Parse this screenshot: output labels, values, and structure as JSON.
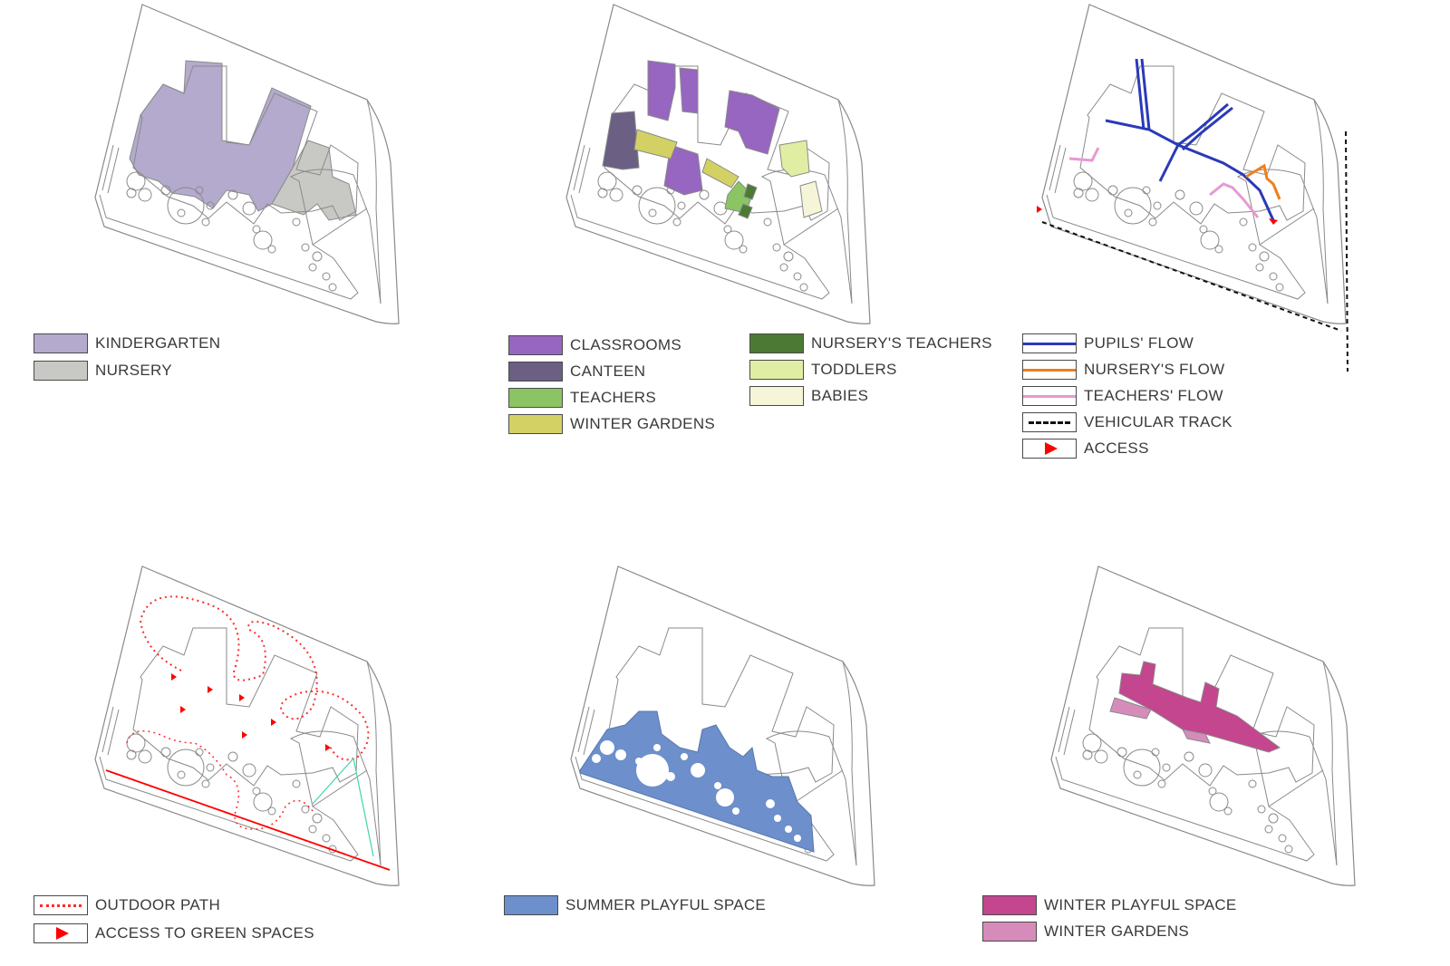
{
  "colors": {
    "kindergarten": "#b4aacd",
    "nursery": "#c8c9c4",
    "classrooms": "#9766c0",
    "canteen": "#6b5f83",
    "teachers": "#8bc462",
    "winter_gardens_yellow": "#d3d163",
    "nursery_teachers": "#4c7a34",
    "toddlers": "#e0eea4",
    "babies": "#f6f5d8",
    "pupils_flow": "#2a3ab8",
    "nursery_flow": "#f07f1a",
    "teachers_flow": "#e799d3",
    "vehicular_track": "#111111",
    "access": "#ff0000",
    "outdoor_path": "#ff2a2a",
    "summer_playful": "#6d8fcb",
    "winter_playful": "#c3468e",
    "winter_gardens_pink": "#d68cba",
    "outline": "#8a8a8a"
  },
  "legends": {
    "program": [
      {
        "label": "KINDERGARTEN",
        "swatch": "fill",
        "color": "#b4aacd"
      },
      {
        "label": "NURSERY",
        "swatch": "fill",
        "color": "#c8c9c4"
      }
    ],
    "functions_left": [
      {
        "label": "CLASSROOMS",
        "swatch": "fill",
        "color": "#9766c0"
      },
      {
        "label": "CANTEEN",
        "swatch": "fill",
        "color": "#6b5f83"
      },
      {
        "label": "TEACHERS",
        "swatch": "fill",
        "color": "#8bc462"
      },
      {
        "label": "WINTER GARDENS",
        "swatch": "fill",
        "color": "#d3d163"
      }
    ],
    "functions_right": [
      {
        "label": "NURSERY'S TEACHERS",
        "swatch": "fill",
        "color": "#4c7a34"
      },
      {
        "label": "TODDLERS",
        "swatch": "fill",
        "color": "#e0eea4"
      },
      {
        "label": "BABIES",
        "swatch": "fill",
        "color": "#f6f5d8"
      }
    ],
    "flows": [
      {
        "label": "PUPILS' FLOW",
        "swatch": "line",
        "color": "#2a3ab8"
      },
      {
        "label": "NURSERY'S FLOW",
        "swatch": "line",
        "color": "#f07f1a"
      },
      {
        "label": "TEACHERS' FLOW",
        "swatch": "line",
        "color": "#e799d3"
      },
      {
        "label": "VEHICULAR TRACK",
        "swatch": "dash",
        "color": "#111111"
      },
      {
        "label": "ACCESS",
        "swatch": "triangle",
        "color": "#ff0000"
      }
    ],
    "outdoor": [
      {
        "label": "OUTDOOR PATH",
        "swatch": "dots",
        "color": "#ff2a2a"
      },
      {
        "label": "ACCESS TO GREEN SPACES",
        "swatch": "triangle",
        "color": "#ff0000"
      }
    ],
    "summer": [
      {
        "label": "SUMMER PLAYFUL SPACE",
        "swatch": "fill",
        "color": "#6d8fcb"
      }
    ],
    "winter": [
      {
        "label": "WINTER PLAYFUL SPACE",
        "swatch": "fill",
        "color": "#c3468e"
      },
      {
        "label": "WINTER GARDENS",
        "swatch": "fill",
        "color": "#d68cba"
      }
    ]
  }
}
